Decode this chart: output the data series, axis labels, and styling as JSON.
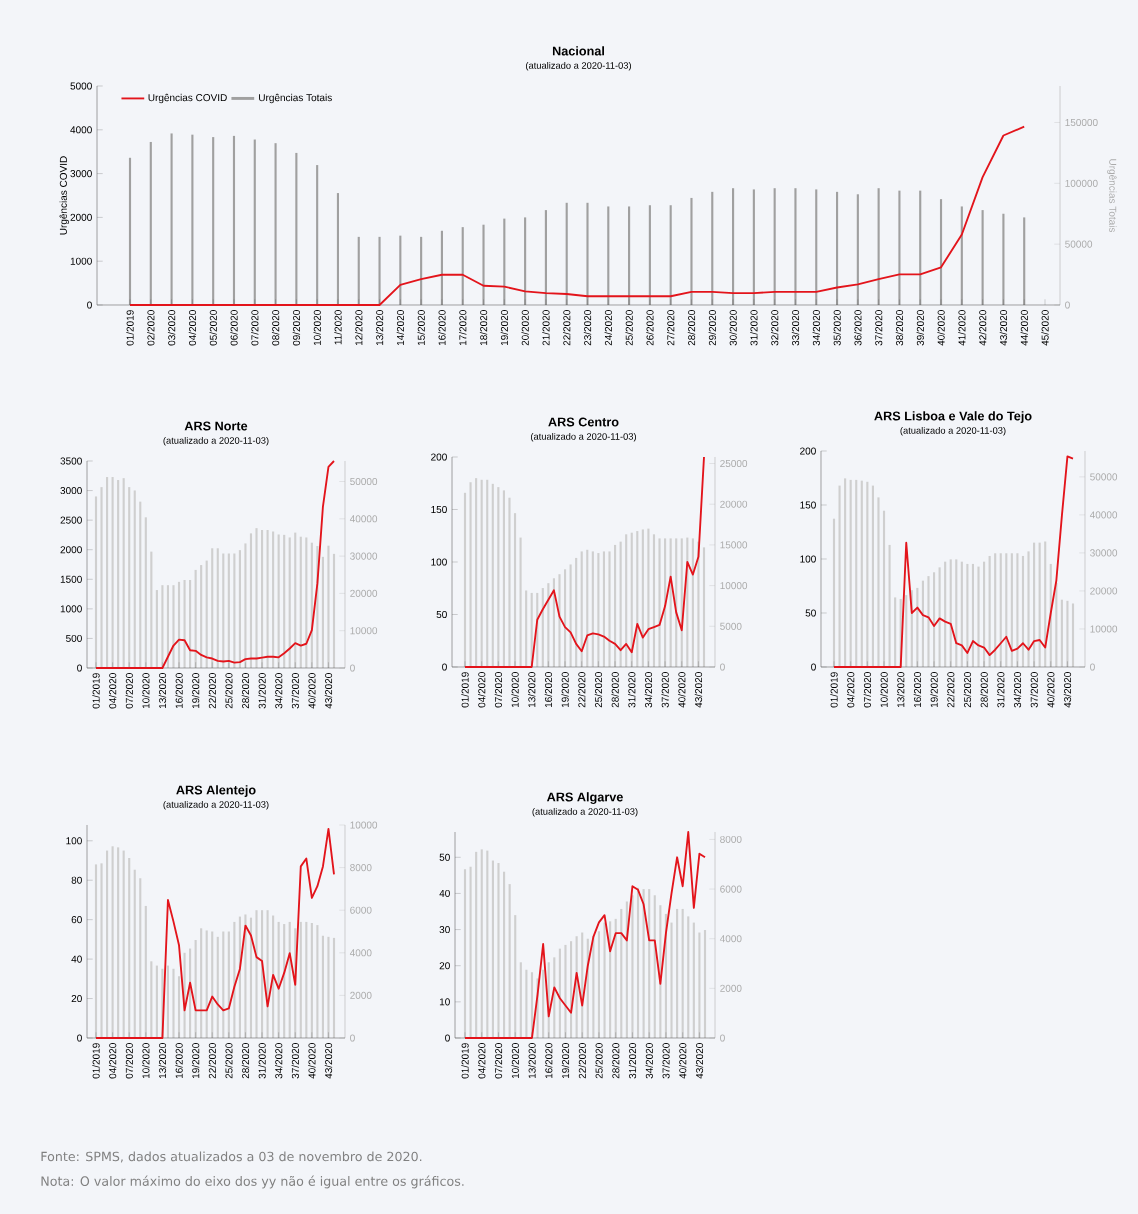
{
  "chart_data": [
    {
      "type": "line",
      "title": "Nacional",
      "subtitle": "(atualizado a 2020-11-03)",
      "ylabel": "Urgências COVID",
      "y2label": "Urgências Totais",
      "legend": "top left",
      "categories": [
        "01/2019",
        "02/2020",
        "03/2020",
        "04/2020",
        "05/2020",
        "06/2020",
        "07/2020",
        "08/2020",
        "09/2020",
        "10/2020",
        "11/2020",
        "12/2020",
        "13/2020",
        "14/2020",
        "15/2020",
        "16/2020",
        "17/2020",
        "18/2020",
        "19/2020",
        "20/2020",
        "21/2020",
        "22/2020",
        "23/2020",
        "24/2020",
        "25/2020",
        "26/2020",
        "27/2020",
        "28/2020",
        "29/2020",
        "30/2020",
        "31/2020",
        "32/2020",
        "33/2020",
        "34/2020",
        "35/2020",
        "36/2020",
        "37/2020",
        "38/2020",
        "39/2020",
        "40/2020",
        "41/2020",
        "42/2020",
        "43/2020",
        "44/2020",
        "45/2020"
      ],
      "ylim": [
        0,
        5000
      ],
      "yticks": [
        0,
        1000,
        2000,
        3000,
        4000,
        5000
      ],
      "y2lim": [
        0,
        180000
      ],
      "y2ticks": [
        0,
        50000,
        100000,
        150000
      ],
      "series": [
        {
          "name": "Urgências COVID",
          "color": "#e3141b",
          "values": [
            0,
            0,
            0,
            0,
            0,
            0,
            0,
            0,
            0,
            0,
            0,
            0,
            0,
            460,
            590,
            690,
            690,
            440,
            420,
            310,
            270,
            250,
            200,
            200,
            200,
            200,
            200,
            300,
            300,
            270,
            270,
            300,
            300,
            300,
            400,
            470,
            590,
            700,
            700,
            860,
            1610,
            2920,
            3870,
            4070,
            null
          ]
        },
        {
          "name": "Urgências Totais",
          "type": "bar",
          "axis": "y2",
          "color": "#a0a0a0",
          "values": [
            121000,
            134000,
            141000,
            140000,
            138000,
            139000,
            136000,
            133000,
            125000,
            115000,
            92000,
            56000,
            56000,
            57000,
            56000,
            61000,
            64000,
            66000,
            71000,
            72000,
            78000,
            84000,
            84000,
            81000,
            81000,
            82000,
            82000,
            88000,
            93000,
            96000,
            95000,
            96000,
            96000,
            95000,
            93000,
            91000,
            96000,
            94000,
            94000,
            87000,
            81000,
            78000,
            75000,
            72000,
            null
          ]
        }
      ]
    },
    {
      "type": "line",
      "title": "ARS Norte",
      "subtitle": "(atualizado a 2020-11-03)",
      "categories": [
        "01/2019",
        null,
        null,
        "04/2020",
        null,
        null,
        "07/2020",
        null,
        null,
        "10/2020",
        null,
        null,
        "13/2020",
        null,
        null,
        "16/2020",
        null,
        null,
        "19/2020",
        null,
        null,
        "22/2020",
        null,
        null,
        "25/2020",
        null,
        null,
        "28/2020",
        null,
        null,
        "31/2020",
        null,
        null,
        "34/2020",
        null,
        null,
        "37/2020",
        null,
        null,
        "40/2020",
        null,
        null,
        "43/2020",
        null
      ],
      "ylim": [
        0,
        3500
      ],
      "yticks": [
        0,
        500,
        1000,
        1500,
        2000,
        2500,
        3000,
        3500
      ],
      "y2lim": [
        0,
        55500
      ],
      "y2ticks": [
        0,
        10000,
        20000,
        30000,
        40000,
        50000
      ],
      "series": [
        {
          "color": "#e3141b",
          "values": [
            0,
            0,
            0,
            0,
            0,
            0,
            0,
            0,
            0,
            0,
            0,
            0,
            0,
            190,
            380,
            480,
            470,
            300,
            290,
            220,
            180,
            160,
            120,
            110,
            120,
            90,
            100,
            150,
            160,
            160,
            175,
            190,
            190,
            180,
            250,
            330,
            420,
            380,
            410,
            640,
            1430,
            2730,
            3400,
            3500
          ]
        },
        {
          "type": "bar",
          "axis": "y2",
          "color": "#cfcfcf",
          "values": [
            46000,
            48500,
            51200,
            51200,
            50400,
            50900,
            48500,
            47600,
            44600,
            40400,
            31200,
            20900,
            22200,
            22200,
            22200,
            23100,
            23600,
            23600,
            26300,
            27600,
            28800,
            32100,
            32100,
            30700,
            30700,
            30700,
            31600,
            33400,
            36100,
            37500,
            37000,
            37000,
            36600,
            35800,
            35700,
            35000,
            36300,
            35200,
            35000,
            33600,
            32700,
            29800,
            32800,
            30600
          ]
        }
      ]
    },
    {
      "type": "line",
      "title": "ARS Centro",
      "subtitle": "(atualizado a 2020-11-03)",
      "categories": [
        "01/2019",
        null,
        null,
        "04/2020",
        null,
        null,
        "07/2020",
        null,
        null,
        "10/2020",
        null,
        null,
        "13/2020",
        null,
        null,
        "16/2020",
        null,
        null,
        "19/2020",
        null,
        null,
        "22/2020",
        null,
        null,
        "25/2020",
        null,
        null,
        "28/2020",
        null,
        null,
        "31/2020",
        null,
        null,
        "34/2020",
        null,
        null,
        "37/2020",
        null,
        null,
        "40/2020",
        null,
        null,
        "43/2020",
        null
      ],
      "ylim": [
        0,
        200
      ],
      "yticks": [
        0,
        50,
        100,
        150,
        200
      ],
      "y2lim": [
        0,
        25800
      ],
      "y2ticks": [
        0,
        5000,
        10000,
        15000,
        20000,
        25000
      ],
      "series": [
        {
          "color": "#e3141b",
          "values": [
            0,
            0,
            0,
            0,
            0,
            0,
            0,
            0,
            0,
            0,
            0,
            0,
            0,
            45,
            55,
            64,
            73,
            48,
            38,
            33,
            22,
            15,
            30,
            32,
            31,
            29,
            25,
            22,
            16,
            22,
            14,
            41,
            28,
            36,
            38,
            40,
            58,
            86,
            52,
            35,
            100,
            88,
            105,
            200
          ]
        },
        {
          "type": "bar",
          "axis": "y2",
          "color": "#cfcfcf",
          "values": [
            21400,
            22700,
            23200,
            23000,
            23000,
            22500,
            22100,
            21700,
            20800,
            18900,
            15900,
            9400,
            9100,
            9100,
            9700,
            10300,
            10900,
            11400,
            12000,
            12600,
            13400,
            14200,
            14400,
            14200,
            14000,
            14200,
            14200,
            15000,
            15400,
            16300,
            16500,
            16700,
            16900,
            17000,
            16300,
            15800,
            15800,
            15800,
            15800,
            15800,
            15900,
            15800,
            15400,
            14700
          ]
        }
      ]
    },
    {
      "type": "line",
      "title": "ARS Lisboa e Vale do Tejo",
      "subtitle": "(atualizado a 2020-11-03)",
      "categories": [
        "01/2019",
        null,
        null,
        "04/2020",
        null,
        null,
        "07/2020",
        null,
        null,
        "10/2020",
        null,
        null,
        "13/2020",
        null,
        null,
        "16/2020",
        null,
        null,
        "19/2020",
        null,
        null,
        "22/2020",
        null,
        null,
        "25/2020",
        null,
        null,
        "28/2020",
        null,
        null,
        "31/2020",
        null,
        null,
        "34/2020",
        null,
        null,
        "37/2020",
        null,
        null,
        "40/2020",
        null,
        null,
        "43/2020",
        null
      ],
      "ylim": [
        0,
        200
      ],
      "yticks": [
        0,
        50,
        100,
        150,
        200
      ],
      "y2lim": [
        0,
        56800
      ],
      "y2ticks": [
        0,
        10000,
        20000,
        30000,
        40000,
        50000
      ],
      "series": [
        {
          "color": "#e3141b",
          "values": [
            0,
            0,
            0,
            0,
            0,
            0,
            0,
            0,
            0,
            0,
            0,
            0,
            0,
            115,
            50,
            55,
            48,
            46,
            38,
            45,
            42,
            40,
            22,
            20,
            13,
            24,
            20,
            18,
            11,
            16,
            22,
            28,
            15,
            17,
            22,
            16,
            24,
            25,
            18,
            50,
            80,
            140,
            195,
            193
          ]
        },
        {
          "type": "bar",
          "axis": "y2",
          "color": "#cfcfcf",
          "values": [
            39000,
            47700,
            49600,
            49200,
            49200,
            49000,
            48700,
            47700,
            44600,
            41100,
            32100,
            18300,
            17900,
            18900,
            20200,
            20800,
            22700,
            23900,
            24900,
            26200,
            27700,
            28300,
            28300,
            27700,
            27100,
            27100,
            26400,
            27700,
            29200,
            29900,
            29900,
            29900,
            29900,
            29900,
            29200,
            30400,
            32700,
            32700,
            33000,
            27100,
            22100,
            17700,
            17400,
            16700
          ]
        }
      ]
    },
    {
      "type": "line",
      "title": "ARS Alentejo",
      "subtitle": "(atualizado a 2020-11-03)",
      "categories": [
        "01/2019",
        null,
        null,
        "04/2020",
        null,
        null,
        "07/2020",
        null,
        null,
        "10/2020",
        null,
        null,
        "13/2020",
        null,
        null,
        "16/2020",
        null,
        null,
        "19/2020",
        null,
        null,
        "22/2020",
        null,
        null,
        "25/2020",
        null,
        null,
        "28/2020",
        null,
        null,
        "31/2020",
        null,
        null,
        "34/2020",
        null,
        null,
        "37/2020",
        null,
        null,
        "40/2020",
        null,
        null,
        "43/2020",
        null
      ],
      "ylim": [
        0,
        108
      ],
      "yticks": [
        0,
        20,
        40,
        60,
        80,
        100
      ],
      "y2lim": [
        0,
        10000
      ],
      "y2ticks": [
        0,
        2000,
        4000,
        6000,
        8000,
        10000
      ],
      "series": [
        {
          "color": "#e3141b",
          "values": [
            0,
            0,
            0,
            0,
            0,
            0,
            0,
            0,
            0,
            0,
            0,
            0,
            0,
            70,
            59,
            47,
            14,
            28,
            14,
            14,
            14,
            21,
            17,
            14,
            15,
            26,
            35,
            57,
            52,
            41,
            39,
            16,
            32,
            25,
            33,
            43,
            27,
            87,
            91,
            71,
            77,
            87,
            106,
            83
          ]
        },
        {
          "type": "bar",
          "axis": "y2",
          "color": "#cfcfcf",
          "values": [
            8150,
            8200,
            8800,
            9000,
            8950,
            8800,
            8450,
            7900,
            7500,
            6200,
            3600,
            3400,
            3250,
            3400,
            3250,
            2900,
            4000,
            4200,
            4600,
            5150,
            5050,
            5000,
            4750,
            5000,
            5000,
            5450,
            5700,
            5800,
            5650,
            6000,
            6000,
            6000,
            5750,
            5450,
            5350,
            5450,
            5150,
            5450,
            5450,
            5400,
            5300,
            4800,
            4750,
            4700
          ]
        }
      ]
    },
    {
      "type": "line",
      "title": "ARS Algarve",
      "subtitle": "(atualizado a 2020-11-03)",
      "categories": [
        "01/2019",
        null,
        null,
        "04/2020",
        null,
        null,
        "07/2020",
        null,
        null,
        "10/2020",
        null,
        null,
        "13/2020",
        null,
        null,
        "16/2020",
        null,
        null,
        "19/2020",
        null,
        null,
        "22/2020",
        null,
        null,
        "25/2020",
        null,
        null,
        "28/2020",
        null,
        null,
        "31/2020",
        null,
        null,
        "34/2020",
        null,
        null,
        "37/2020",
        null,
        null,
        "40/2020",
        null,
        null,
        "43/2020",
        null
      ],
      "ylim": [
        0,
        57
      ],
      "yticks": [
        0,
        10,
        20,
        30,
        40,
        50
      ],
      "y2lim": [
        0,
        8300
      ],
      "y2ticks": [
        0,
        2000,
        4000,
        6000,
        8000
      ],
      "annotations": [
        "Fonte: SPMS, dados atualizados a 03 de novembro de 2020.",
        "Nota: O valor máximo do eixo dos yy não é igual entre os gráficos."
      ],
      "series": [
        {
          "color": "#e3141b",
          "values": [
            0,
            0,
            0,
            0,
            0,
            0,
            0,
            0,
            0,
            0,
            0,
            0,
            0,
            12,
            26,
            6,
            14,
            11,
            9,
            7,
            18,
            9,
            20,
            28,
            32,
            34,
            24,
            29,
            29,
            27,
            42,
            41,
            37,
            27,
            27,
            15,
            29,
            40,
            50,
            42,
            57,
            36,
            51,
            50
          ]
        },
        {
          "type": "bar",
          "axis": "y2",
          "color": "#cfcfcf",
          "values": [
            6800,
            6900,
            7500,
            7600,
            7550,
            7150,
            7050,
            6700,
            6200,
            4950,
            3050,
            2750,
            2650,
            2400,
            2750,
            3050,
            3250,
            3600,
            3750,
            3900,
            4100,
            4250,
            4000,
            4100,
            4300,
            4650,
            4700,
            4800,
            5200,
            5500,
            5750,
            6050,
            6000,
            6000,
            5750,
            5350,
            5000,
            4650,
            5200,
            5200,
            4900,
            4650,
            4250,
            4350
          ]
        }
      ]
    }
  ]
}
